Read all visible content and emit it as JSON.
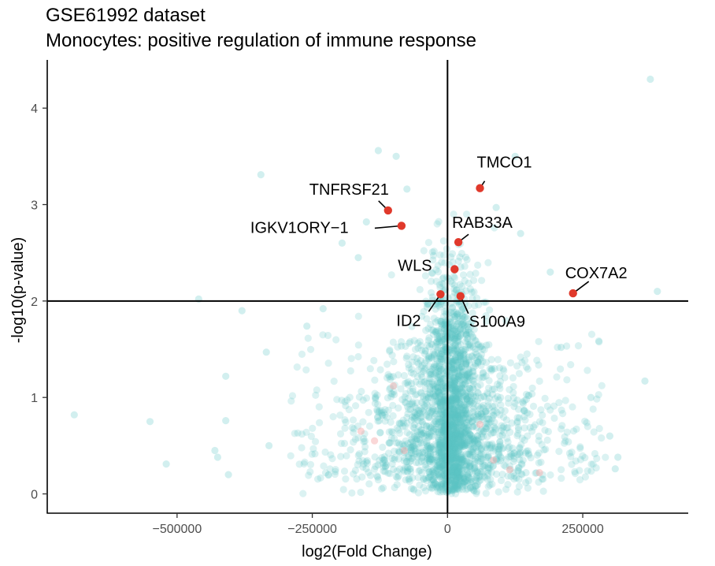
{
  "chart_data": {
    "type": "scatter",
    "title": "GSE61992 dataset",
    "subtitle": "Monocytes: positive regulation of immune response",
    "xlabel": "log2(Fold Change)",
    "ylabel": "-log10(p-value)",
    "xlim": [
      -740000,
      445000
    ],
    "ylim": [
      -0.2,
      4.5
    ],
    "x_ticks": [
      -500000,
      -250000,
      0,
      250000
    ],
    "x_tick_labels": [
      "−500000",
      "−250000",
      "0",
      "250000"
    ],
    "y_ticks": [
      0,
      1,
      2,
      3,
      4
    ],
    "y_tick_labels": [
      "0",
      "1",
      "2",
      "3",
      "4"
    ],
    "hline": 2,
    "vline": 0,
    "grid": false,
    "legend": "none",
    "colors": {
      "background_points": "#5cc4c4",
      "highlight": "#e0392b",
      "faint_highlight": "#f4a6a6"
    },
    "highlighted": [
      {
        "label": "TMCO1",
        "x": 60000,
        "y": 3.17
      },
      {
        "label": "TNFRSF21",
        "x": -110000,
        "y": 2.94
      },
      {
        "label": "IGKV1ORY−1",
        "x": -85000,
        "y": 2.78
      },
      {
        "label": "RAB33A",
        "x": 20000,
        "y": 2.61
      },
      {
        "label": "WLS",
        "x": 13000,
        "y": 2.33
      },
      {
        "label": "COX7A2",
        "x": 232000,
        "y": 2.08
      },
      {
        "label": "ID2",
        "x": -13000,
        "y": 2.07
      },
      {
        "label": "S100A9",
        "x": 24000,
        "y": 2.05
      }
    ],
    "outliers": [
      {
        "x": -690000,
        "y": 0.82
      },
      {
        "x": -550000,
        "y": 0.75
      },
      {
        "x": -520000,
        "y": 0.31
      },
      {
        "x": -460000,
        "y": 2.02
      },
      {
        "x": -430000,
        "y": 0.45
      },
      {
        "x": -425000,
        "y": 0.38
      },
      {
        "x": -410000,
        "y": 1.22
      },
      {
        "x": -410000,
        "y": 0.76
      },
      {
        "x": -405000,
        "y": 0.2
      },
      {
        "x": -380000,
        "y": 1.9
      },
      {
        "x": -345000,
        "y": 3.31
      },
      {
        "x": -335000,
        "y": 1.47
      },
      {
        "x": -330000,
        "y": 0.5
      },
      {
        "x": -260000,
        "y": 1.74
      },
      {
        "x": -230000,
        "y": 1.92
      },
      {
        "x": -195000,
        "y": 2.6
      },
      {
        "x": -128000,
        "y": 3.56
      },
      {
        "x": -95000,
        "y": 3.5
      },
      {
        "x": -75000,
        "y": 3.16
      },
      {
        "x": 90000,
        "y": 2.97
      },
      {
        "x": 125000,
        "y": 3.5
      },
      {
        "x": 190000,
        "y": 2.3
      },
      {
        "x": 210000,
        "y": 1.52
      },
      {
        "x": 265000,
        "y": 1.0
      },
      {
        "x": 300000,
        "y": 0.6
      },
      {
        "x": 310000,
        "y": 0.26
      },
      {
        "x": 315000,
        "y": 0.38
      },
      {
        "x": 375000,
        "y": 4.3
      },
      {
        "x": 388000,
        "y": 2.1
      },
      {
        "x": 365000,
        "y": 1.17
      },
      {
        "x": -150000,
        "y": 2.82
      },
      {
        "x": -165000,
        "y": 2.45
      },
      {
        "x": 135000,
        "y": 2.7
      }
    ],
    "faint_highlight_points": [
      {
        "x": -160000,
        "y": 0.65
      },
      {
        "x": -135000,
        "y": 0.55
      },
      {
        "x": -100000,
        "y": 1.12
      },
      {
        "x": -80000,
        "y": 0.45
      },
      {
        "x": 60000,
        "y": 0.72
      },
      {
        "x": 85000,
        "y": 0.35
      },
      {
        "x": 115000,
        "y": 0.25
      },
      {
        "x": 170000,
        "y": 0.22
      }
    ],
    "cloud_seed": 61992,
    "cloud_count": 2400
  }
}
